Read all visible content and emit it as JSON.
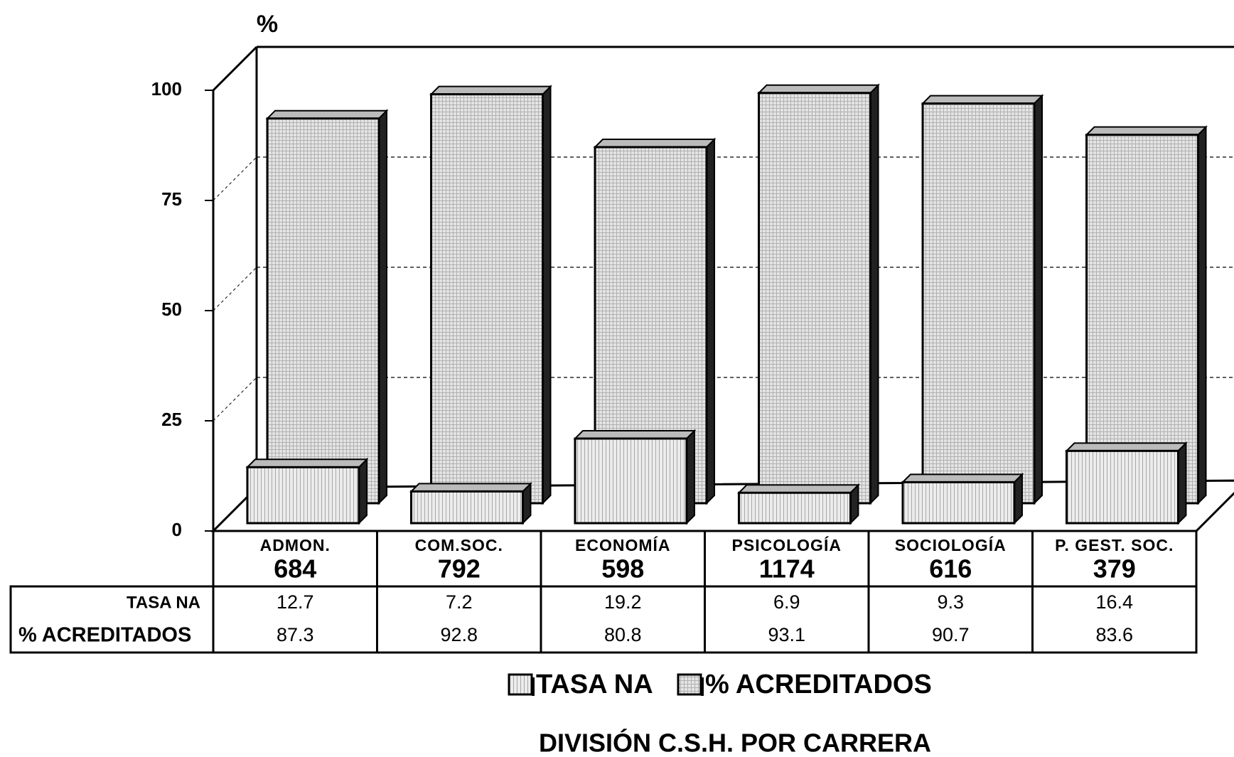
{
  "chart_data": {
    "type": "bar3d",
    "title": "DIVISIÓN C.S.H. POR CARRERA",
    "y_label": "%",
    "categories": [
      "ADMON.",
      "COM.SOC.",
      "ECONOMÍA",
      "PSICOLOGÍA",
      "SOCIOLOGÍA",
      "P. GEST. SOC."
    ],
    "category_counts": [
      684,
      792,
      598,
      1174,
      616,
      379
    ],
    "series": [
      {
        "name": "TASA NA",
        "color": "#e4e4e4",
        "values": [
          12.7,
          7.2,
          19.2,
          6.9,
          9.3,
          16.4
        ]
      },
      {
        "name": "% ACREDITADOS",
        "color": "#d8d8d8",
        "values": [
          87.3,
          92.8,
          80.8,
          93.1,
          90.7,
          83.6
        ]
      }
    ],
    "ylim": [
      0,
      100
    ],
    "yticks": [
      0,
      25,
      50,
      75,
      100
    ],
    "grid": true
  }
}
